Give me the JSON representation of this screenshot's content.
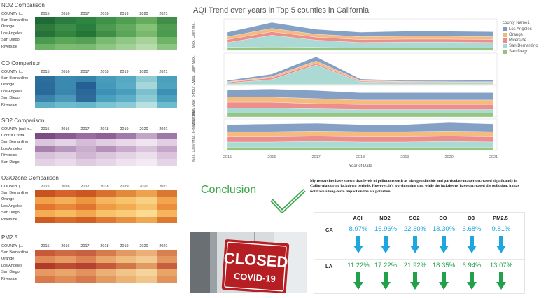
{
  "heatmaps": [
    {
      "title": "NO2 Comparison",
      "county_header": "COUNTY (...",
      "years": [
        "2015",
        "2016",
        "2017",
        "2018",
        "2019",
        "2020",
        "2021"
      ],
      "rows": [
        {
          "label": "San Bernardino",
          "colors": [
            "#1f6b36",
            "#2a7d3f",
            "#2e8542",
            "#3d9248",
            "#4f9f52",
            "#64ad5c",
            "#3f8f49"
          ]
        },
        {
          "label": "Orange",
          "colors": [
            "#2f7b3d",
            "#3a8c46",
            "#2a7e3e",
            "#4c9a50",
            "#64aa5e",
            "#86c178",
            "#509d51"
          ]
        },
        {
          "label": "Los Angeles",
          "colors": [
            "#26723a",
            "#33843f",
            "#237636",
            "#3e8e47",
            "#5aa658",
            "#78b96d",
            "#4a9a4f"
          ]
        },
        {
          "label": "San Diego",
          "colors": [
            "#4a9b4f",
            "#5aa75a",
            "#54a155",
            "#79bb70",
            "#8fc785",
            "#a6d39a",
            "#6fb466"
          ]
        },
        {
          "label": "Riverside",
          "colors": [
            "#6cb264",
            "#7cbc72",
            "#7aba70",
            "#8dc783",
            "#a1d196",
            "#b6dca9",
            "#8bc581"
          ]
        }
      ]
    },
    {
      "title": "CO Comparison",
      "county_header": "COUNTY (...",
      "years": [
        "2015",
        "2016",
        "2017",
        "2018",
        "2019",
        "2020",
        "2021"
      ],
      "rows": [
        {
          "label": "San Bernardino",
          "colors": [
            "#2d6f9c",
            "#3b89b0",
            "#3785ac",
            "#4b9bbd",
            "#56a8c3",
            "#8dcad2",
            "#4aa0bd"
          ]
        },
        {
          "label": "Orange",
          "colors": [
            "#2b6c9a",
            "#3b88b0",
            "#255f93",
            "#4599ba",
            "#5aabc5",
            "#a4d6da",
            "#50a3be"
          ]
        },
        {
          "label": "Los Angeles",
          "colors": [
            "#2a6a98",
            "#3a86ae",
            "#2b6898",
            "#3f90b5",
            "#4b9dbd",
            "#7cc0cd",
            "#3d8fb4"
          ]
        },
        {
          "label": "San Diego",
          "colors": [
            "#3a82ab",
            "#4a97ba",
            "#2d6c9a",
            "#48a0be",
            "#5caec7",
            "#8ccbd3",
            "#4aa0bd"
          ]
        },
        {
          "label": "Riverside",
          "colors": [
            "#5fb0c7",
            "#6dbbcd",
            "#67b7cb",
            "#7cc4d2",
            "#8ccbd5",
            "#b8e0e0",
            "#6cbccd"
          ]
        }
      ]
    },
    {
      "title": "SO2 Comparison",
      "county_header": "COUNTY (cali n...",
      "years": [
        "2015",
        "2016",
        "2017",
        "2018",
        "2019",
        "2020",
        "2021"
      ],
      "rows": [
        {
          "label": "Contra Costa",
          "colors": [
            "#7a4c82",
            "#8a5b90",
            "#9a6ba0",
            "#8f5f95",
            "#a07aa8",
            "#c3a5c7",
            "#9e78a6"
          ]
        },
        {
          "label": "San Bernardino",
          "colors": [
            "#dcc6de",
            "#e4d2e5",
            "#d6bcd8",
            "#e1cde2",
            "#e8d8e9",
            "#efe4ef",
            "#e3cfe4"
          ]
        },
        {
          "label": "Los Angeles",
          "colors": [
            "#a682ad",
            "#b898bc",
            "#c9aecc",
            "#b592ba",
            "#c7a9c9",
            "#d9c3da",
            "#c5a6c8"
          ]
        },
        {
          "label": "Riverside",
          "colors": [
            "#d8c1da",
            "#e0cce1",
            "#d2b6d4",
            "#dcc6dd",
            "#e4d2e5",
            "#ecdfec",
            "#dbc4dc"
          ]
        },
        {
          "label": "San Diego",
          "colors": [
            "#e3d1e4",
            "#e9dbea",
            "#dfcce0",
            "#e6d5e6",
            "#ede2ed",
            "#f3ebf3",
            "#e5d3e6"
          ]
        }
      ]
    },
    {
      "title": "O3/Ozone Comparison",
      "county_header": "COUNTY (...",
      "years": [
        "2015",
        "2016",
        "2017",
        "2018",
        "2019",
        "2020",
        "2021"
      ],
      "rows": [
        {
          "label": "San Bernardino",
          "colors": [
            "#c9531e",
            "#d4622a",
            "#cc5722",
            "#da7030",
            "#e28a3c",
            "#eea24f",
            "#dc7633"
          ]
        },
        {
          "label": "Orange",
          "colors": [
            "#f0a24a",
            "#f4b058",
            "#eb973f",
            "#f5b660",
            "#f7c36d",
            "#f9d183",
            "#f1a64e"
          ]
        },
        {
          "label": "Los Angeles",
          "colors": [
            "#e3752f",
            "#ea8638",
            "#e27430",
            "#ef9b44",
            "#f3ab52",
            "#f7c06a",
            "#eb8d3c"
          ]
        },
        {
          "label": "San Diego",
          "colors": [
            "#f3ad54",
            "#f6bb61",
            "#f2a84e",
            "#f7c36a",
            "#f9cd78",
            "#fbdb92",
            "#f5b55c"
          ]
        },
        {
          "label": "Riverside",
          "colors": [
            "#cf5a22",
            "#d86a2a",
            "#d06024",
            "#de7934",
            "#e68f40",
            "#efa754",
            "#de7934"
          ]
        }
      ]
    },
    {
      "title": "PM2.5",
      "county_header": "COUNTY (...",
      "years": [
        "2015",
        "2016",
        "2017",
        "2018",
        "2019",
        "2020",
        "2021"
      ],
      "rows": [
        {
          "label": "San Bernardino",
          "colors": [
            "#c8593a",
            "#d06a44",
            "#c96042",
            "#d77a4c",
            "#e29a62",
            "#eab077",
            "#d9804f"
          ]
        },
        {
          "label": "Orange",
          "colors": [
            "#e08a58",
            "#e69b64",
            "#dc8254",
            "#e8a56c",
            "#efbc80",
            "#f3cb92",
            "#e29760"
          ]
        },
        {
          "label": "Los Angeles",
          "colors": [
            "#b13b2a",
            "#bd4a33",
            "#b44231",
            "#c6583c",
            "#d37648",
            "#e09a62",
            "#c65f3d"
          ]
        },
        {
          "label": "San Diego",
          "colors": [
            "#e69a62",
            "#eaa66a",
            "#e2925c",
            "#ebb075",
            "#f1c487",
            "#f5d49c",
            "#e9a468"
          ]
        },
        {
          "label": "Riverside",
          "colors": [
            "#d97a4c",
            "#e08c56",
            "#d67a4d",
            "#e39a60",
            "#ecb274",
            "#f1c589",
            "#e0935a"
          ]
        }
      ]
    }
  ],
  "trend": {
    "title": "AQI Trend over years in Top 5 counties in California",
    "xlabel": "Year of Date",
    "panel_axis_labels": [
      "Max. Daily Ma..",
      "Max. Daily Max..",
      "Max. Daily Max. 8-hour CO ..",
      "Max. Daily Max. 8-hour Ozone.."
    ],
    "legend_title": "county Name1",
    "legend": [
      {
        "name": "Los Angeles",
        "color": "#7f9bc2"
      },
      {
        "name": "Orange",
        "color": "#f5b878"
      },
      {
        "name": "Riverside",
        "color": "#ec8a86"
      },
      {
        "name": "San Bernardino",
        "color": "#a7d8d2"
      },
      {
        "name": "San Diego",
        "color": "#8fc47c"
      }
    ]
  },
  "chart_data": {
    "type": "area",
    "title": "AQI Trend over years in Top 5 counties in California",
    "xlabel": "Year of Date",
    "x": [
      "2015",
      "2016",
      "2017",
      "2018",
      "2019",
      "2020",
      "2021"
    ],
    "series_names": [
      "Los Angeles",
      "Orange",
      "Riverside",
      "San Bernardino",
      "San Diego"
    ],
    "stacked": true,
    "legend_position": "right",
    "panels": [
      {
        "ylabel": "Max. Daily Ma..",
        "series": [
          {
            "name": "San Diego",
            "values": [
              6,
              7,
              6,
              5,
              5,
              5,
              5
            ]
          },
          {
            "name": "San Bernardino",
            "values": [
              10,
              24,
              15,
              11,
              12,
              12,
              11
            ]
          },
          {
            "name": "Riverside",
            "values": [
              6,
              7,
              6,
              6,
              6,
              6,
              6
            ]
          },
          {
            "name": "Orange",
            "values": [
              6,
              7,
              6,
              6,
              6,
              6,
              6
            ]
          },
          {
            "name": "Los Angeles",
            "values": [
              9,
              12,
              10,
              9,
              10,
              10,
              10
            ]
          }
        ]
      },
      {
        "ylabel": "Max. Daily Max..",
        "series": [
          {
            "name": "San Diego",
            "values": [
              1,
              1,
              1,
              1,
              1,
              1,
              1
            ]
          },
          {
            "name": "San Bernardino",
            "values": [
              4,
              16,
              65,
              8,
              6,
              5,
              5
            ]
          },
          {
            "name": "Riverside",
            "values": [
              3,
              6,
              5,
              3,
              2,
              2,
              2
            ]
          },
          {
            "name": "Orange",
            "values": [
              2,
              4,
              8,
              2,
              2,
              2,
              2
            ]
          },
          {
            "name": "Los Angeles",
            "values": [
              4,
              8,
              14,
              5,
              3,
              4,
              5
            ]
          }
        ]
      },
      {
        "ylabel": "Max. Daily Max. 8-hour CO ..",
        "series": [
          {
            "name": "San Diego",
            "values": [
              5,
              5,
              5,
              5,
              5,
              5,
              5
            ]
          },
          {
            "name": "San Bernardino",
            "values": [
              7,
              7,
              6,
              5,
              5,
              5,
              5
            ]
          },
          {
            "name": "Riverside",
            "values": [
              8,
              8,
              7,
              7,
              7,
              7,
              7
            ]
          },
          {
            "name": "Orange",
            "values": [
              7,
              7,
              7,
              6,
              6,
              6,
              6
            ]
          },
          {
            "name": "Los Angeles",
            "values": [
              10,
              11,
              11,
              10,
              10,
              10,
              10
            ]
          }
        ]
      },
      {
        "ylabel": "Max. Daily Max. 8-hour Ozone..",
        "series": [
          {
            "name": "San Diego",
            "values": [
              5,
              5,
              5,
              5,
              5,
              5,
              5
            ]
          },
          {
            "name": "San Bernardino",
            "values": [
              8,
              8,
              9,
              8,
              8,
              9,
              8
            ]
          },
          {
            "name": "Riverside",
            "values": [
              8,
              8,
              8,
              8,
              8,
              8,
              8
            ]
          },
          {
            "name": "Orange",
            "values": [
              8,
              8,
              8,
              8,
              8,
              8,
              8
            ]
          },
          {
            "name": "Los Angeles",
            "values": [
              11,
              12,
              12,
              11,
              11,
              13,
              12
            ]
          }
        ]
      }
    ]
  },
  "conclusion": {
    "heading": "Conclusion",
    "text": "My researches have shown that levels of pollutants such as nitrogen dioxide and particulate matter decreased significantly in California during lockdown periods. However, it's worth noting that while the lockdowns have decreased the pollution, it may not have a long-term impact on the air pollution."
  },
  "photo": {
    "sign_top": "CLOSED",
    "sign_bottom": "COVID-19"
  },
  "table": {
    "columns": [
      "AQI",
      "NO2",
      "SO2",
      "CO",
      "O3",
      "PM2.5"
    ],
    "rows": [
      {
        "label": "CA",
        "values": [
          "8.97%",
          "16.96%",
          "22.30%",
          "18.30%",
          "6.68%",
          "9.81%"
        ],
        "color": "#1da6e0",
        "arrow_color": "#1da6e0"
      },
      {
        "label": "LA",
        "values": [
          "11.22%",
          "17.22%",
          "21.92%",
          "18.35%",
          "6.94%",
          "13.07%"
        ],
        "color": "#22a04a",
        "arrow_color": "#22a04a"
      }
    ]
  }
}
